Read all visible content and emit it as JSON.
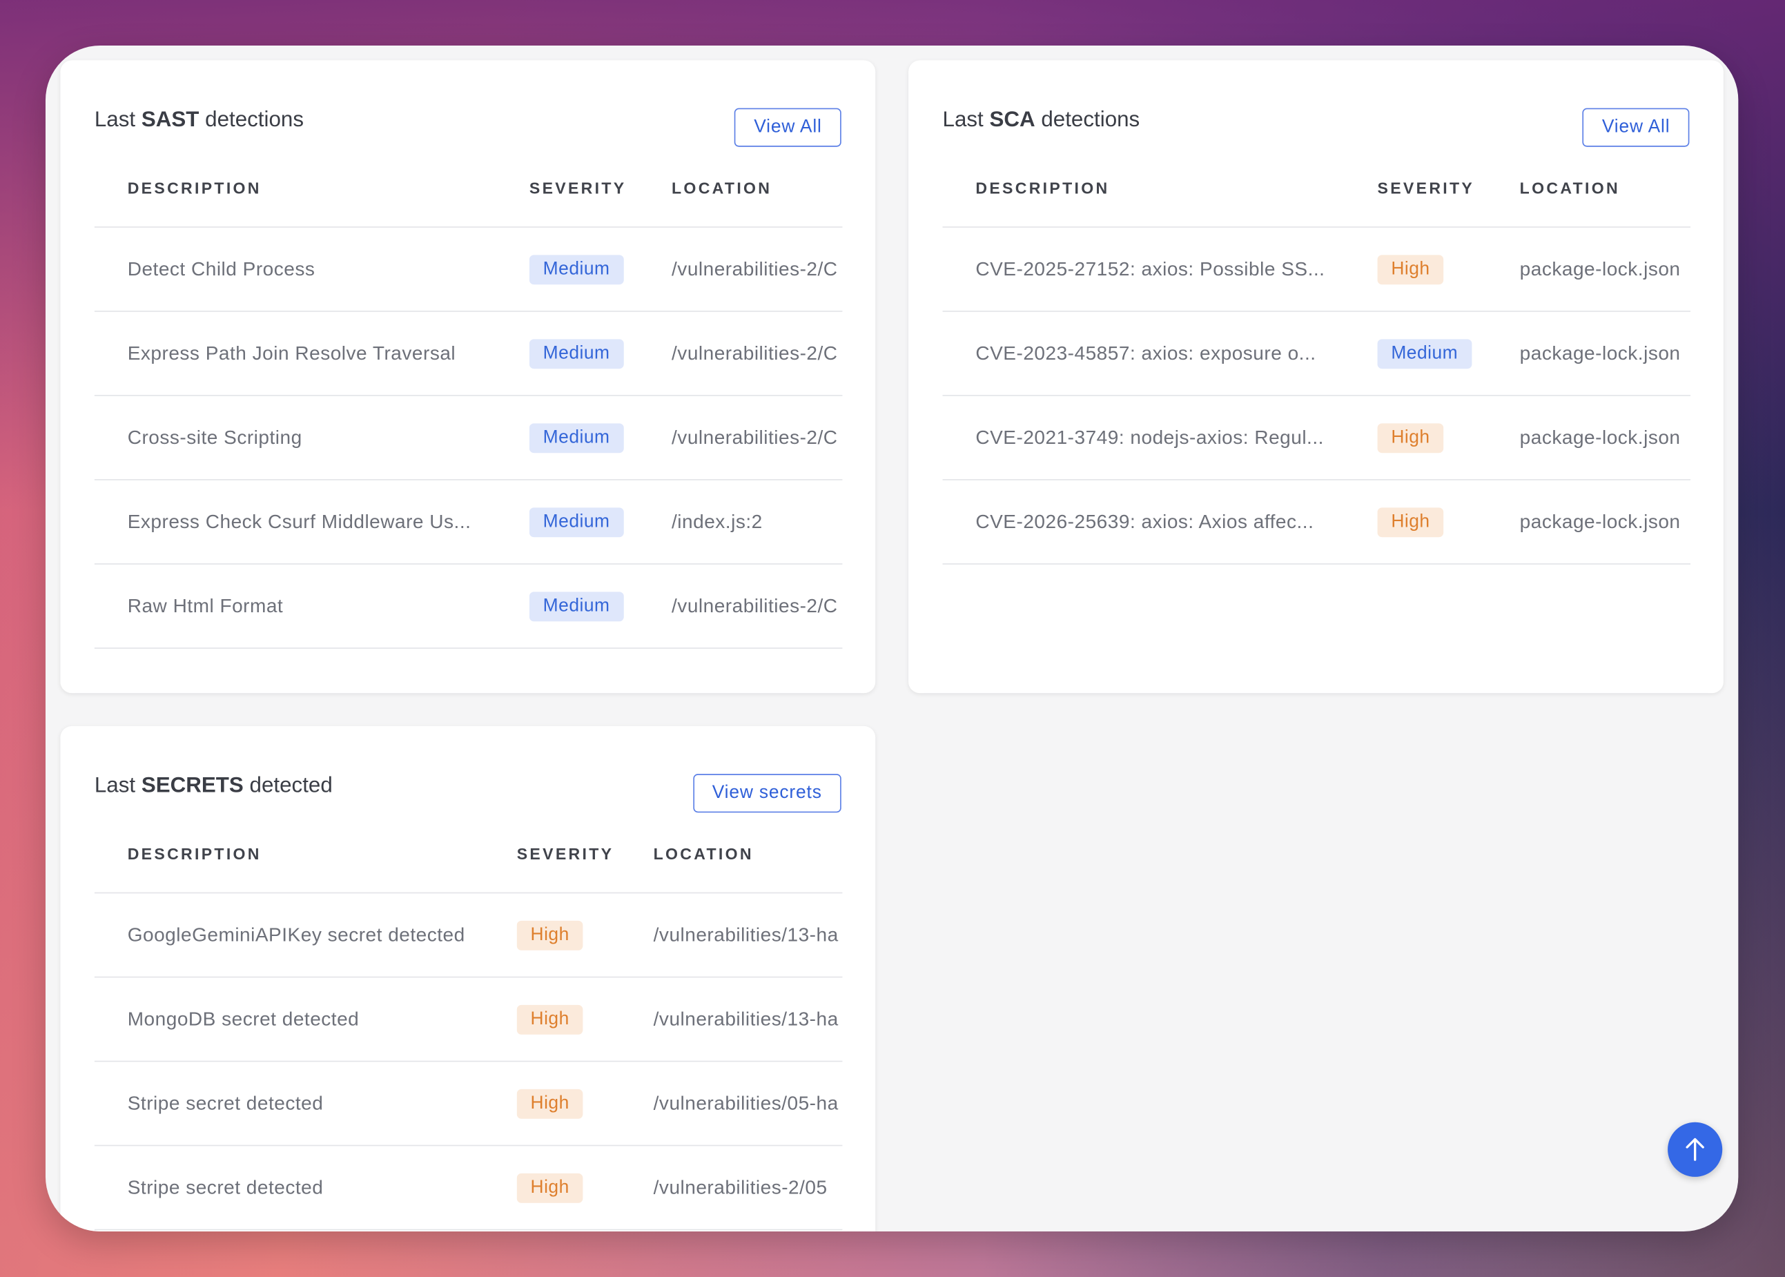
{
  "panels": [
    {
      "title": {
        "prefix": "Last",
        "strong": "SAST",
        "suffix": "detections"
      },
      "button": "View All",
      "columns": [
        "DESCRIPTION",
        "SEVERITY",
        "LOCATION"
      ],
      "rows": [
        [
          "Detect Child Process",
          "Medium",
          "/vulnerabilities-2/C"
        ],
        [
          "Express Path Join Resolve Traversal",
          "Medium",
          "/vulnerabilities-2/C"
        ],
        [
          "Cross-site Scripting",
          "Medium",
          "/vulnerabilities-2/C"
        ],
        [
          "Express Check Csurf Middleware Us...",
          "Medium",
          "/index.js:2"
        ],
        [
          "Raw Html Format",
          "Medium",
          "/vulnerabilities-2/C"
        ]
      ]
    },
    {
      "title": {
        "prefix": "Last",
        "strong": "SCA",
        "suffix": "detections"
      },
      "button": "View All",
      "columns": [
        "DESCRIPTION",
        "SEVERITY",
        "LOCATION"
      ],
      "rows": [
        [
          "CVE-2025-27152: axios: Possible SS...",
          "High",
          "package-lock.json"
        ],
        [
          "CVE-2023-45857: axios: exposure o...",
          "Medium",
          "package-lock.json"
        ],
        [
          "CVE-2021-3749: nodejs-axios: Regul...",
          "High",
          "package-lock.json"
        ],
        [
          "CVE-2026-25639: axios: Axios affec...",
          "High",
          "package-lock.json"
        ]
      ]
    },
    {
      "title": {
        "prefix": "Last",
        "strong": "SECRETS",
        "suffix": "detected"
      },
      "button": "View secrets",
      "columns": [
        "DESCRIPTION",
        "SEVERITY",
        "LOCATION"
      ],
      "rows": [
        [
          "GoogleGeminiAPIKey secret detected",
          "High",
          "/vulnerabilities/13-ha"
        ],
        [
          "MongoDB secret detected",
          "High",
          "/vulnerabilities/13-ha"
        ],
        [
          "Stripe secret detected",
          "High",
          "/vulnerabilities/05-ha"
        ],
        [
          "Stripe secret detected",
          "High",
          "/vulnerabilities-2/05"
        ]
      ]
    }
  ]
}
